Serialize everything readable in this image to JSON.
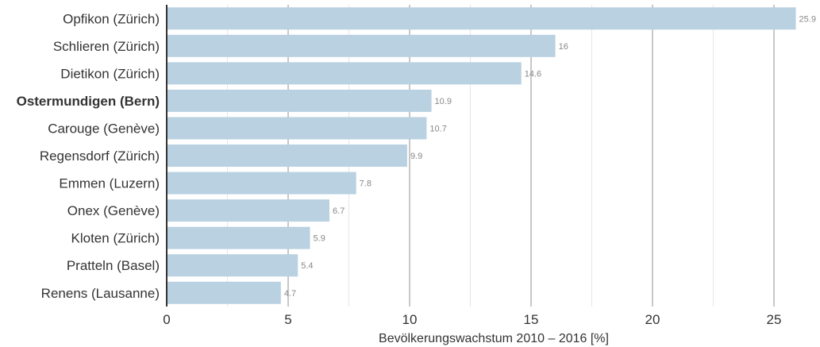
{
  "chart_data": {
    "type": "bar",
    "orientation": "horizontal",
    "categories": [
      "Opfikon (Zürich)",
      "Schlieren (Zürich)",
      "Dietikon (Zürich)",
      "Ostermundigen (Bern)",
      "Carouge (Genève)",
      "Regensdorf (Zürich)",
      "Emmen (Luzern)",
      "Onex (Genève)",
      "Kloten (Zürich)",
      "Pratteln (Basel)",
      "Renens (Lausanne)"
    ],
    "values": [
      25.9,
      16,
      14.6,
      10.9,
      10.7,
      9.9,
      7.8,
      6.7,
      5.9,
      5.4,
      4.7
    ],
    "value_labels": [
      "25.9",
      "16",
      "14.6",
      "10.9",
      "10.7",
      "9.9",
      "7.8",
      "6.7",
      "5.9",
      "5.4",
      "4.7"
    ],
    "highlighted_category": "Ostermundigen (Bern)",
    "xlabel": "Bevölkerungswachstum 2010 – 2016 [%]",
    "xlim": [
      0,
      26
    ],
    "x_ticks": [
      0,
      5,
      10,
      15,
      20,
      25
    ],
    "grid": true,
    "colors": {
      "bar": "#b9d1e1",
      "major_grid": "#c8c8c8",
      "minor_grid": "#e6e6e6",
      "axis": "#333333",
      "text": "#333333",
      "value_text": "#888888"
    }
  }
}
